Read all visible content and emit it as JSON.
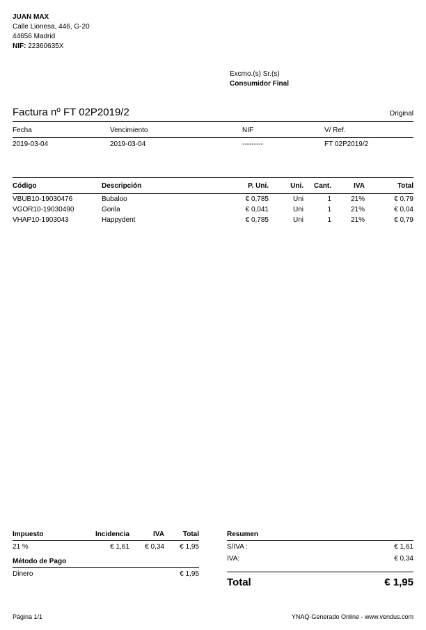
{
  "sender": {
    "name": "JUAN MAX",
    "address1": "Calle Lionesa, 446, G-20",
    "address2": "44656 Madrid",
    "nif_label": "NIF:",
    "nif": "22360635X"
  },
  "recipient": {
    "salutation": "Excmo.(s) Sr.(s)",
    "consumer": "Consumidor Final"
  },
  "invoice": {
    "title": "Factura nº FT 02P2019/2",
    "original": "Original"
  },
  "meta": {
    "fecha_label": "Fecha",
    "fecha": "2019-03-04",
    "venc_label": "Vencimiento",
    "venc": "2019-03-04",
    "nif_label": "NIF",
    "nif": "---------",
    "vref_label": "V/ Ref.",
    "vref": "FT 02P2019/2"
  },
  "items": {
    "headers": {
      "codigo": "Código",
      "descripcion": "Descripción",
      "p_uni": "P. Uni.",
      "uni": "Uni.",
      "cant": "Cant.",
      "iva": "IVA",
      "total": "Total"
    },
    "rows": [
      {
        "codigo": "VBUB10-19030476",
        "desc": "Bubaloo",
        "p_uni": "€ 0,785",
        "uni": "Uni",
        "cant": "1",
        "iva": "21%",
        "total": "€ 0,79"
      },
      {
        "codigo": "VGOR10-19030490",
        "desc": "Gorila",
        "p_uni": "€ 0,041",
        "uni": "Uni",
        "cant": "1",
        "iva": "21%",
        "total": "€ 0,04"
      },
      {
        "codigo": "VHAP10-1903043",
        "desc": "Happydent",
        "p_uni": "€ 0,785",
        "uni": "Uni",
        "cant": "1",
        "iva": "21%",
        "total": "€ 0,79"
      }
    ]
  },
  "tax": {
    "headers": {
      "impuesto": "Impuesto",
      "incidencia": "Incidencia",
      "iva": "IVA",
      "total": "Total"
    },
    "row": {
      "impuesto": "21 %",
      "incidencia": "€ 1,61",
      "iva": "€ 0,34",
      "total": "€ 1,95"
    }
  },
  "payment": {
    "header": "Método de Pago",
    "row": {
      "method": "Dinero",
      "amount": "€ 1,95"
    }
  },
  "summary": {
    "header": "Resumen",
    "siva_label": "S/IVA :",
    "siva": "€ 1,61",
    "iva_label": "IVA:",
    "iva": "€ 0,34",
    "total_label": "Total",
    "total": "€ 1,95"
  },
  "footer": {
    "page": "Página 1/1",
    "gen": "YNAQ-Generado Online - www.vendus.com"
  }
}
